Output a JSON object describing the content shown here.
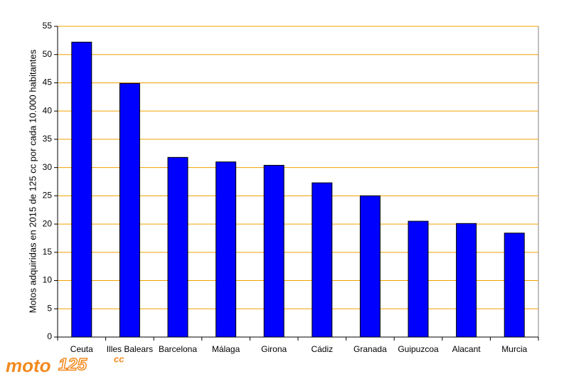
{
  "chart_data": {
    "type": "bar",
    "y_label": "Motos adquiridas en 2015 de 125 cc por cada 10.000 habitantes",
    "categories": [
      "Ceuta",
      "Illes Balears",
      "Barcelona",
      "Málaga",
      "Girona",
      "Cádiz",
      "Granada",
      "Guipuzcoa",
      "Alacant",
      "Murcia"
    ],
    "values": [
      52.2,
      44.9,
      31.8,
      31.0,
      30.4,
      27.3,
      25.0,
      20.5,
      20.1,
      18.4
    ],
    "color": "#0000ff",
    "grid_color": "#f0a000",
    "ylim": [
      0,
      55
    ],
    "yticks": [
      0,
      5,
      10,
      15,
      20,
      25,
      30,
      35,
      40,
      45,
      50,
      55
    ],
    "grid": true
  },
  "logo": {
    "part1": "moto",
    "part2": "125",
    "part3": "cc"
  }
}
